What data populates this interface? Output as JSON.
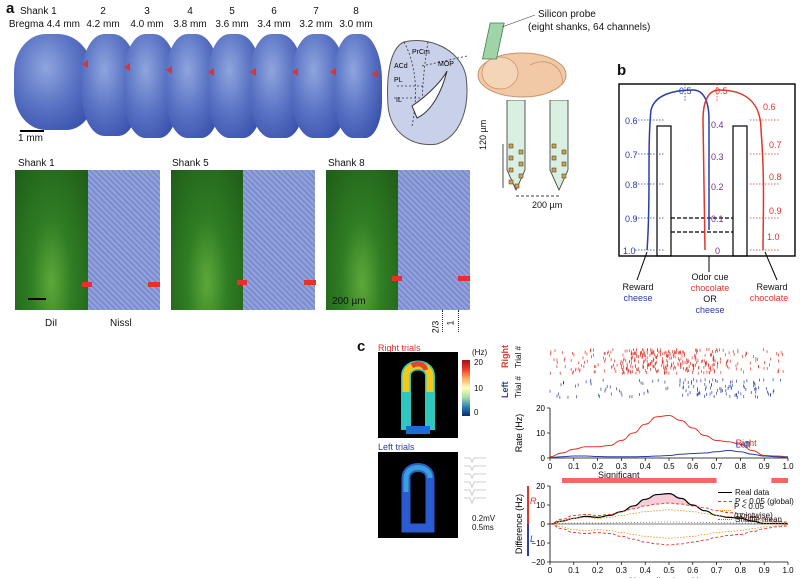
{
  "panel_a": {
    "label": "a",
    "shanks": [
      {
        "shank": "Shank 1",
        "bregma": "Bregma 4.4 mm"
      },
      {
        "shank": "2",
        "bregma": "4.2 mm"
      },
      {
        "shank": "3",
        "bregma": "4.0 mm"
      },
      {
        "shank": "4",
        "bregma": "3.8 mm"
      },
      {
        "shank": "5",
        "bregma": "3.6 mm"
      },
      {
        "shank": "6",
        "bregma": "3.4 mm"
      },
      {
        "shank": "7",
        "bregma": "3.2 mm"
      },
      {
        "shank": "8",
        "bregma": "3.0 mm"
      }
    ],
    "scale_1mm": "1 mm",
    "atlas_regions": [
      "PrCm",
      "ACd",
      "PL",
      "IL",
      "MOP"
    ],
    "probe_title": "Silicon probe",
    "probe_subtitle": "(eight shanks, 64 channels)",
    "probe_dim_vertical": "120 µm",
    "probe_dim_horizontal": "200 µm",
    "histology_titles": [
      "Shank 1",
      "Shank 5",
      "Shank 8"
    ],
    "scale_200um": "200 µm",
    "stain_labels": [
      "DiI",
      "Nissl"
    ],
    "layer_labels": [
      "2/3",
      "1"
    ]
  },
  "panel_b": {
    "label": "b",
    "blue_ticks": [
      "0.5",
      "0.6",
      "0.7",
      "0.8",
      "0.9",
      "1.0"
    ],
    "purple_ticks": [
      "0.4",
      "0.3",
      "0.2",
      "0.1",
      "0"
    ],
    "red_ticks": [
      "0.5",
      "0.6",
      "0.7",
      "0.8",
      "0.9",
      "1.0"
    ],
    "reward_left": "Reward",
    "reward_left_item": "cheese",
    "odor_cue": "Odor cue",
    "odor_choc": "chocolate",
    "odor_or": "OR",
    "odor_cheese": "cheese",
    "reward_right": "Reward",
    "reward_right_item": "chocolate"
  },
  "panel_c": {
    "label": "c",
    "right_trials": "Right trials",
    "left_trials": "Left trials",
    "colorbar_unit": "(Hz)",
    "colorbar_ticks": [
      "20",
      "10",
      "0"
    ],
    "waveform_scale_v": "0.2mV",
    "waveform_scale_t": "0.5ms",
    "raster_right": "Right",
    "raster_left": "Left",
    "raster_axis": "Trial #",
    "significant_label": "Significant",
    "legend": [
      "Real data",
      "P < 0.05 (global)",
      "P < 0.05 (pointwise)",
      "Shuffle mean"
    ],
    "axis_R": "R",
    "axis_L": "L"
  },
  "chart_data": [
    {
      "type": "line",
      "title": "",
      "xlabel": "",
      "ylabel": "Rate (Hz)",
      "xlim": [
        0,
        1
      ],
      "ylim": [
        0,
        20
      ],
      "xticks": [
        "0",
        "0.1",
        "0.2",
        "0.3",
        "0.4",
        "0.5",
        "0.6",
        "0.7",
        "0.8",
        "0.9",
        "1.0"
      ],
      "yticks": [
        "0",
        "10",
        "20"
      ],
      "x": [
        0,
        0.05,
        0.1,
        0.15,
        0.2,
        0.25,
        0.3,
        0.35,
        0.4,
        0.45,
        0.5,
        0.55,
        0.6,
        0.65,
        0.7,
        0.75,
        0.8,
        0.85,
        0.9,
        0.95,
        1.0
      ],
      "series": [
        {
          "name": "Right",
          "color": "#e0352b",
          "values": [
            0.5,
            2,
            3.5,
            4.5,
            4.5,
            5,
            7,
            10,
            13.5,
            16.5,
            17,
            15,
            12,
            9,
            7,
            6.5,
            5.5,
            3,
            1,
            0.8,
            0.5
          ]
        },
        {
          "name": "Left",
          "color": "#2a3ea8",
          "values": [
            0.2,
            0.5,
            0.8,
            0.8,
            0.6,
            0.5,
            0.5,
            0.5,
            0.6,
            0.8,
            1,
            1.5,
            1.8,
            2,
            2.5,
            3,
            2.5,
            1.5,
            0.8,
            0.5,
            0.3
          ]
        }
      ]
    },
    {
      "type": "line",
      "title": "",
      "xlabel": "Normalized position",
      "ylabel": "Difference (Hz)",
      "xlim": [
        0,
        1
      ],
      "ylim": [
        -20,
        20
      ],
      "xticks": [
        "0",
        "0.1",
        "0.2",
        "0.3",
        "0.4",
        "0.5",
        "0.6",
        "0.7",
        "0.8",
        "0.9",
        "1.0"
      ],
      "yticks": [
        "−20",
        "−10",
        "0",
        "10",
        "20"
      ],
      "x": [
        0,
        0.05,
        0.1,
        0.15,
        0.2,
        0.25,
        0.3,
        0.35,
        0.4,
        0.45,
        0.5,
        0.55,
        0.6,
        0.65,
        0.7,
        0.75,
        0.8,
        0.85,
        0.9,
        0.95,
        1.0
      ],
      "series": [
        {
          "name": "Real data",
          "color": "#000000",
          "values": [
            0,
            1.5,
            3,
            4,
            3.5,
            4.5,
            6.5,
            9.5,
            13,
            15.5,
            16,
            13.5,
            10,
            7,
            4.5,
            3.5,
            3,
            1.5,
            0.3,
            0.3,
            0.2
          ]
        },
        {
          "name": "P < 0.05 (global) upper",
          "color": "#e0352b",
          "values": [
            0,
            2.5,
            4.5,
            5,
            4.5,
            5,
            6.5,
            8,
            9.5,
            10.5,
            11,
            10.5,
            9.5,
            8.5,
            7,
            6,
            5.5,
            4,
            2.5,
            1.5,
            1
          ]
        },
        {
          "name": "P < 0.05 (global) lower",
          "color": "#e0352b",
          "values": [
            0,
            -2.5,
            -4.5,
            -5,
            -4.5,
            -5,
            -6.5,
            -8,
            -9.5,
            -10.5,
            -11,
            -10.5,
            -9.5,
            -8.5,
            -7,
            -6,
            -5.5,
            -4,
            -2.5,
            -1.5,
            -1
          ]
        },
        {
          "name": "P < 0.05 (pointwise) upper",
          "color": "#f29a2e",
          "values": [
            0,
            1.5,
            3,
            3.5,
            3,
            3.5,
            4.5,
            5.5,
            6.5,
            7,
            7.5,
            7,
            6.5,
            5.5,
            4.5,
            4,
            3.5,
            2.5,
            1.5,
            1,
            0.5
          ]
        },
        {
          "name": "P < 0.05 (pointwise) lower",
          "color": "#f29a2e",
          "values": [
            0,
            -1.5,
            -3,
            -3.5,
            -3,
            -3.5,
            -4.5,
            -5.5,
            -6.5,
            -7,
            -7.5,
            -7,
            -6.5,
            -5.5,
            -4.5,
            -4,
            -3.5,
            -2.5,
            -1.5,
            -1,
            -0.5
          ]
        },
        {
          "name": "Shuffle mean",
          "color": "#777777",
          "values": [
            0,
            0.3,
            0.5,
            0.6,
            0.5,
            0.6,
            0.7,
            0.8,
            0.9,
            1,
            1,
            1,
            0.9,
            0.8,
            0.7,
            0.6,
            0.5,
            0.4,
            0.3,
            0.2,
            0.1
          ]
        }
      ],
      "significant_ranges": [
        [
          0.05,
          0.7
        ],
        [
          0.93,
          1.0
        ]
      ]
    }
  ]
}
